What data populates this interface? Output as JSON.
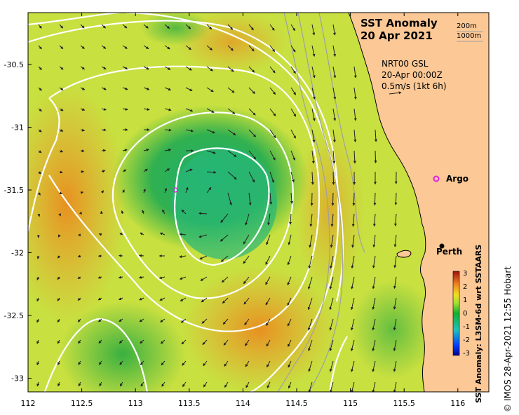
{
  "map": {
    "title": "SST Anomaly",
    "date": "20 Apr 2021",
    "depth_legend": [
      "200m",
      "1000m"
    ],
    "product": "NRT00 GSL",
    "timestamp": "20-Apr 00:00Z",
    "vector_scale": "0.5m/s (1kt 6h)",
    "places": [
      {
        "name": "Argo",
        "lon": 115.78,
        "lat": -31.47
      },
      {
        "name": "Perth",
        "lon": 115.86,
        "lat": -31.95
      }
    ],
    "copyright": "© IMOS 28-Apr-2021 12:55 Hobart",
    "colors": {
      "land": "#fbc896",
      "contour": "#ffffff",
      "bathymetry": "#a0a0a0",
      "argo_marker": "#e020e0"
    }
  },
  "axes": {
    "x_ticks": [
      "112",
      "112.5",
      "113",
      "113.5",
      "114",
      "114.5",
      "115",
      "115.5",
      "116"
    ],
    "y_ticks": [
      "-30.5",
      "-31",
      "-31.5",
      "-32",
      "-32.5",
      "-33"
    ],
    "lon_range": [
      112,
      116.3
    ],
    "lat_range": [
      -33.1,
      -30.05
    ]
  },
  "colorbar": {
    "title": "SST Anomaly: L3SM-6d wrt SSTAARS",
    "ticks": [
      "3",
      "2",
      "1",
      "0",
      "-1",
      "-2",
      "-3"
    ],
    "range": [
      -3,
      3
    ]
  }
}
